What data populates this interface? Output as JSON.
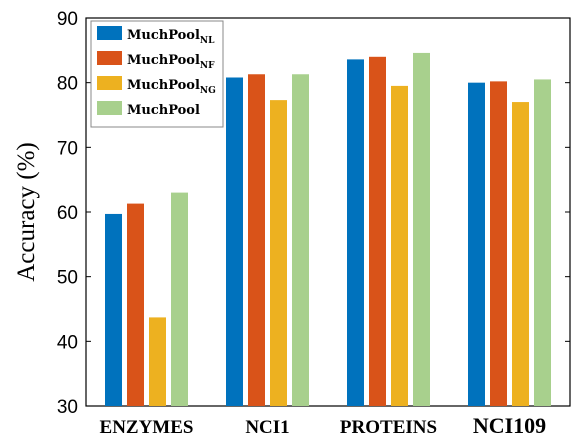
{
  "chart_data": {
    "type": "bar",
    "title": "",
    "xlabel": "",
    "ylabel": "Accuracy (%)",
    "ylim": [
      30,
      90
    ],
    "yticks": [
      30,
      40,
      50,
      60,
      70,
      80,
      90
    ],
    "grid": false,
    "legend_position": "top-left",
    "categories": [
      "ENZYMES",
      "NCI1",
      "PROTEINS",
      "NCI109"
    ],
    "series": [
      {
        "name": "MuchPool",
        "name_sub": "NL",
        "color": "#0072BD",
        "values": [
          59.7,
          80.8,
          83.6,
          80.0
        ]
      },
      {
        "name": "MuchPool",
        "name_sub": "NF",
        "color": "#D95319",
        "values": [
          61.3,
          81.3,
          84.0,
          80.2
        ]
      },
      {
        "name": "MuchPool",
        "name_sub": "NG",
        "color": "#EDB120",
        "values": [
          43.7,
          77.3,
          79.5,
          77.0
        ]
      },
      {
        "name": "MuchPool",
        "name_sub": "",
        "color": "#A8D08D",
        "values": [
          63.0,
          81.3,
          84.6,
          80.5
        ]
      }
    ]
  }
}
